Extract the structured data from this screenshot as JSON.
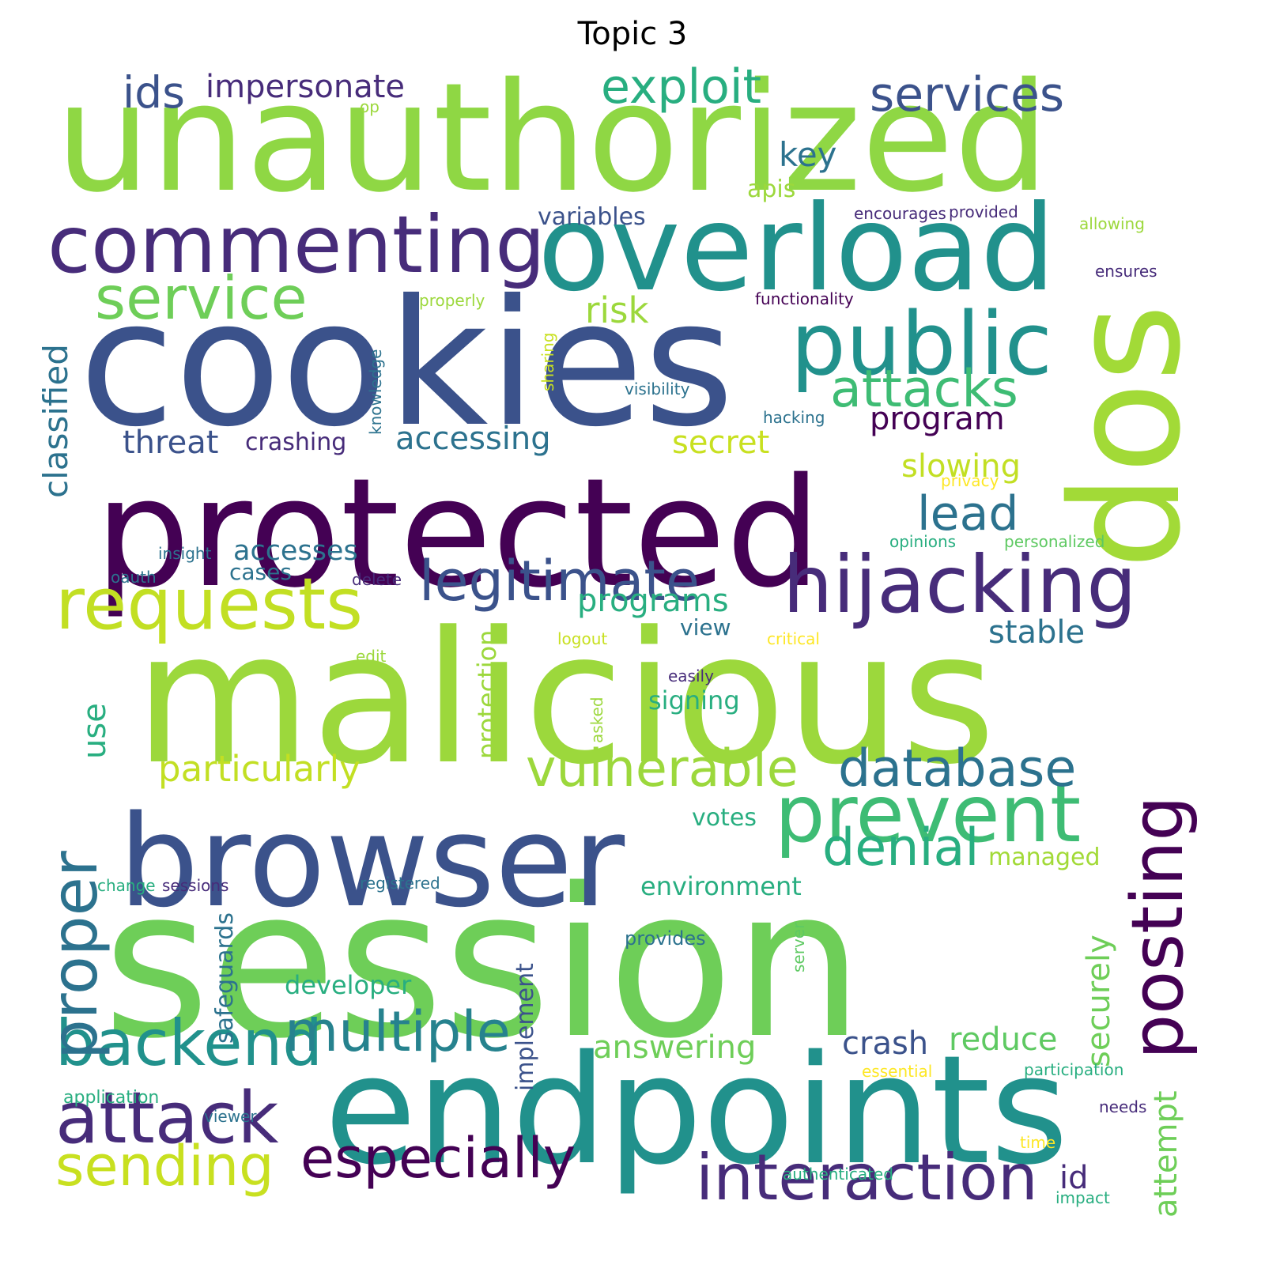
{
  "title": "Topic 3",
  "words": {
    "unauthorized": "unauthorized",
    "cookies": "cookies",
    "protected": "protected",
    "malicious": "malicious",
    "session": "session",
    "browser": "browser",
    "endpoints": "endpoints",
    "overload": "overload",
    "commenting": "commenting",
    "dos": "dos",
    "public": "public",
    "hijacking": "hijacking",
    "requests": "requests",
    "legitimate": "legitimate",
    "prevent": "prevent",
    "posting": "posting",
    "attack": "attack",
    "backend": "backend",
    "multiple": "multiple",
    "interaction": "interaction",
    "especially": "especially",
    "sending": "sending",
    "proper": "proper",
    "database": "database",
    "vulnerable": "vulnerable",
    "denial": "denial",
    "service": "service",
    "attacks": "attacks",
    "exploit": "exploit",
    "services": "services",
    "impersonate": "impersonate",
    "ids": "ids",
    "classified": "classified",
    "key": "key",
    "apis": "apis",
    "variables": "variables",
    "risk": "risk",
    "program": "program",
    "secret": "secret",
    "slowing": "slowing",
    "lead": "lead",
    "accessing": "accessing",
    "threat": "threat",
    "crashing": "crashing",
    "accesses": "accesses",
    "cases": "cases",
    "programs": "programs",
    "stable": "stable",
    "view": "view",
    "signing": "signing",
    "particularly": "particularly",
    "use": "use",
    "protection": "protection",
    "votes": "votes",
    "managed": "managed",
    "environment": "environment",
    "securely": "securely",
    "attempt": "attempt",
    "crash": "crash",
    "reduce": "reduce",
    "answering": "answering",
    "developer": "developer",
    "implement": "implement",
    "safeguards": "safeguards",
    "id": "id",
    "provides": "provides",
    "op": "op",
    "encourages": "encourages",
    "provided": "provided",
    "allowing": "allowing",
    "ensures": "ensures",
    "functionality": "functionality",
    "properly": "properly",
    "sharing": "sharing",
    "knowledge": "knowledge",
    "visibility": "visibility",
    "hacking": "hacking",
    "privacy": "privacy",
    "opinions": "opinions",
    "personalized": "personalized",
    "insight": "insight",
    "oauth": "oauth",
    "delete": "delete",
    "logout": "logout",
    "critical": "critical",
    "edit": "edit",
    "easily": "easily",
    "asked": "asked",
    "change": "change",
    "sessions": "sessions",
    "registered": "registered",
    "server": "server",
    "essential": "essential",
    "participation": "participation",
    "application": "application",
    "viewer": "viewer",
    "needs": "needs",
    "time": "time",
    "authenticated": "authenticated",
    "impact": "impact"
  },
  "colors": {
    "dark_purple": "#440154",
    "purple": "#472c7a",
    "indigo": "#3b528b",
    "blue": "#2c728e",
    "teal": "#21918c",
    "sea_green": "#28ae80",
    "green": "#5ec962",
    "lime": "#addc30",
    "yellow_green": "#c8e020",
    "yellow": "#fde725"
  }
}
